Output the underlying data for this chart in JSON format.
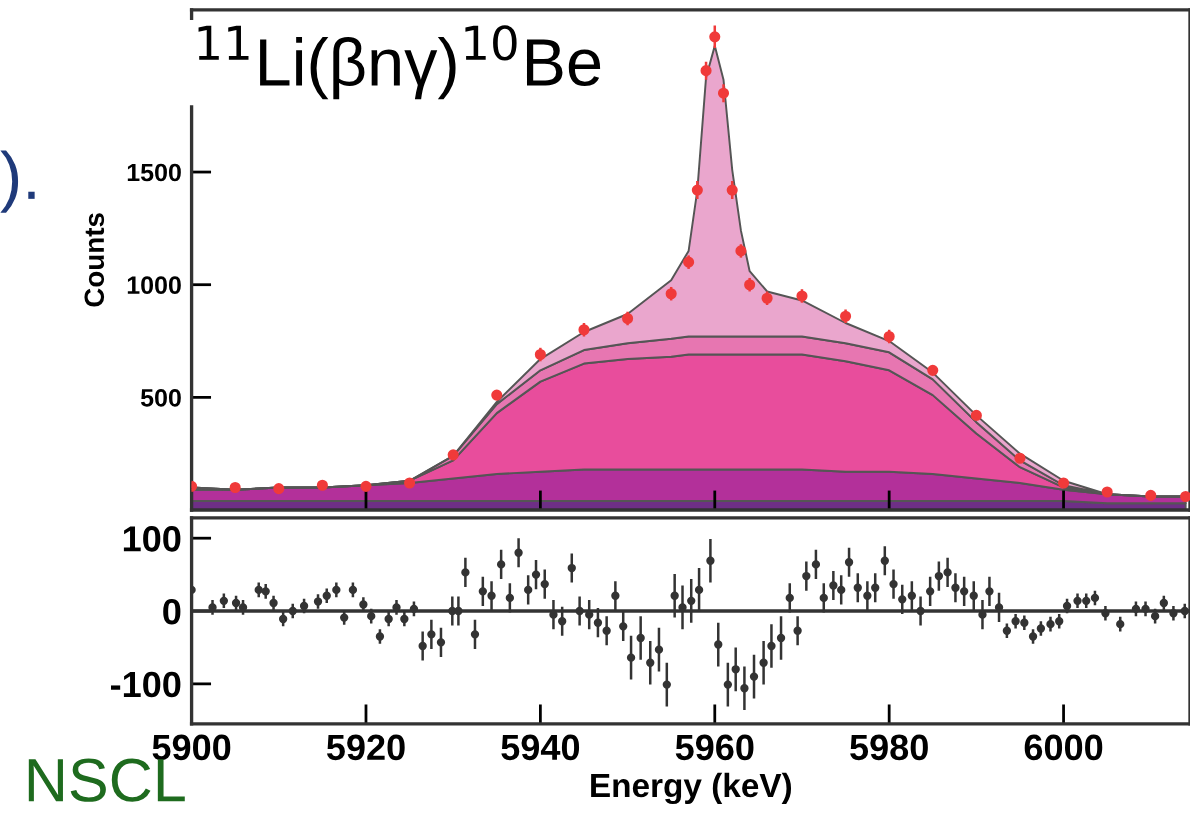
{
  "chart_data": [
    {
      "type": "area",
      "stacked": true,
      "title": "$^{11}$Li(βnγ)$^{10}$Be",
      "ylabel": "Counts",
      "annotations": [
        ").",
        "NSCL"
      ],
      "x": [
        5900,
        5905,
        5910,
        5915,
        5920,
        5925,
        5930,
        5935,
        5940,
        5945,
        5950,
        5955,
        5957,
        5958,
        5959,
        5960,
        5961,
        5962,
        5963,
        5964,
        5966,
        5970,
        5975,
        5980,
        5985,
        5990,
        5995,
        6000,
        6005,
        6010,
        6014
      ],
      "xlim": [
        5900,
        6014.5
      ],
      "ylim": [
        0,
        2220
      ],
      "yticks": [
        500,
        1000,
        1500
      ],
      "xticks": [
        5900,
        5920,
        5940,
        5960,
        5980,
        6000
      ],
      "tick_labels": "y",
      "grid": false,
      "series": [
        {
          "color": "#6e2f86",
          "values": [
            40,
            40,
            40,
            40,
            40,
            40,
            40,
            40,
            40,
            40,
            40,
            40,
            40,
            40,
            40,
            40,
            40,
            40,
            40,
            40,
            40,
            40,
            40,
            40,
            40,
            40,
            40,
            40,
            30,
            30,
            30
          ]
        },
        {
          "color": "#b3309a",
          "values": [
            50,
            50,
            60,
            60,
            70,
            80,
            100,
            120,
            130,
            140,
            140,
            140,
            140,
            140,
            140,
            140,
            140,
            140,
            140,
            140,
            140,
            140,
            130,
            130,
            120,
            100,
            80,
            50,
            40,
            30,
            30
          ]
        },
        {
          "color": "#e84d9c",
          "values": [
            10,
            0,
            0,
            0,
            0,
            10,
            80,
            270,
            400,
            470,
            490,
            500,
            510,
            510,
            510,
            510,
            510,
            510,
            510,
            510,
            510,
            510,
            490,
            450,
            350,
            200,
            70,
            10,
            0,
            0,
            0
          ]
        },
        {
          "color": "#e776b1",
          "values": [
            0,
            0,
            0,
            0,
            0,
            0,
            20,
            40,
            50,
            60,
            70,
            80,
            80,
            80,
            80,
            80,
            80,
            80,
            80,
            80,
            80,
            80,
            80,
            80,
            70,
            50,
            30,
            10,
            0,
            0,
            0
          ]
        },
        {
          "color": "#eaa6cd",
          "values": [
            0,
            0,
            0,
            0,
            0,
            0,
            0,
            10,
            50,
            80,
            130,
            260,
            380,
            650,
            1150,
            1290,
            1140,
            740,
            470,
            290,
            200,
            160,
            90,
            50,
            30,
            30,
            30,
            20,
            0,
            0,
            0
          ]
        },
        {
          "type": "scatter",
          "color": "#f03a3a",
          "marker": "circle",
          "x": [
            5900,
            5905,
            5910,
            5915,
            5920,
            5925,
            5930,
            5935,
            5940,
            5945,
            5950,
            5955,
            5957,
            5958,
            5959,
            5960,
            5961,
            5962,
            5963,
            5964,
            5966,
            5970,
            5975,
            5980,
            5985,
            5990,
            5995,
            6000,
            6005,
            6010,
            6014
          ],
          "values": [
            105,
            100,
            95,
            110,
            105,
            120,
            245,
            510,
            690,
            800,
            850,
            960,
            1100,
            1420,
            1950,
            2100,
            1850,
            1420,
            1150,
            1000,
            940,
            950,
            860,
            770,
            620,
            420,
            230,
            120,
            80,
            65,
            60
          ],
          "errors": [
            10,
            10,
            10,
            10,
            10,
            10,
            20,
            20,
            30,
            30,
            30,
            30,
            30,
            40,
            40,
            50,
            40,
            40,
            30,
            30,
            30,
            30,
            30,
            30,
            20,
            20,
            20,
            10,
            10,
            10,
            10
          ]
        }
      ]
    },
    {
      "type": "scatter",
      "xlabel": "Energy (keV)",
      "xlim": [
        5900,
        6014.5
      ],
      "ylim": [
        -155,
        128
      ],
      "xticks": [
        5900,
        5920,
        5940,
        5960,
        5980,
        6000
      ],
      "yticks": [
        -100,
        0,
        100
      ],
      "grid": false,
      "marker": "circle",
      "ref_lines": [
        {
          "axis": "y",
          "value": 0,
          "color": "#333333",
          "line_style": "solid"
        }
      ],
      "series": [
        {
          "color": "#333333",
          "x": [
            5900,
            5902.4,
            5903.7,
            5905.1,
            5905.9,
            5907.7,
            5908.5,
            5909.4,
            5910.5,
            5911.6,
            5912.9,
            5914.5,
            5915.5,
            5916.6,
            5917.5,
            5918.5,
            5919.7,
            5920.6,
            5921.6,
            5922.6,
            5923.5,
            5924.4,
            5925.5,
            5926.5,
            5927.5,
            5928.6,
            5929.9,
            5930.6,
            5931.4,
            5932.5,
            5933.4,
            5934.4,
            5935.5,
            5936.5,
            5937.5,
            5938.6,
            5939.5,
            5940.5,
            5941.5,
            5942.5,
            5943.6,
            5944.5,
            5945.6,
            5946.6,
            5947.6,
            5948.6,
            5949.5,
            5950.4,
            5951.5,
            5952.6,
            5953.6,
            5954.5,
            5955.4,
            5956.3,
            5957.3,
            5958.2,
            5959.5,
            5960.4,
            5961.5,
            5962.4,
            5963.4,
            5964.5,
            5965.6,
            5966.5,
            5967.6,
            5968.6,
            5969.5,
            5970.5,
            5971.6,
            5972.5,
            5973.6,
            5974.5,
            5975.4,
            5976.4,
            5977.5,
            5978.4,
            5979.5,
            5980.5,
            5981.5,
            5982.6,
            5983.6,
            5984.7,
            5985.7,
            5986.7,
            5987.6,
            5988.6,
            5989.7,
            5990.7,
            5991.5,
            5992.6,
            5993.5,
            5994.5,
            5995.5,
            5996.5,
            5997.4,
            5998.5,
            5999.5,
            6000.4,
            6001.6,
            6002.6,
            6003.6,
            6004.8,
            6006.5,
            6008.3,
            6009.4,
            6010.5,
            6011.5,
            6012.6,
            6013.9
          ],
          "values": [
            29,
            5,
            14,
            11,
            5,
            29,
            27,
            11,
            -11,
            0,
            7,
            13,
            21,
            29,
            -9,
            29,
            9,
            -7,
            -35,
            -11,
            5,
            -11,
            3,
            -48,
            -32,
            -43,
            0,
            0,
            53,
            -32,
            27,
            21,
            64,
            18,
            80,
            29,
            50,
            37,
            -5,
            -14,
            59,
            0,
            -5,
            -16,
            -27,
            21,
            -21,
            -64,
            -37,
            -71,
            -53,
            -101,
            21,
            5,
            14,
            29,
            69,
            -46,
            -101,
            -80,
            -106,
            -90,
            -71,
            -48,
            -37,
            18,
            -27,
            48,
            64,
            18,
            35,
            29,
            67,
            32,
            21,
            32,
            69,
            37,
            16,
            21,
            0,
            27,
            48,
            53,
            32,
            27,
            21,
            -5,
            27,
            5,
            -27,
            -14,
            -16,
            -35,
            -24,
            -18,
            -14,
            7,
            14,
            14,
            18,
            -3,
            -18,
            3,
            3,
            -7,
            11,
            -3,
            0
          ],
          "errors": [
            10,
            10,
            10,
            10,
            10,
            10,
            10,
            10,
            10,
            10,
            10,
            10,
            10,
            10,
            10,
            10,
            10,
            10,
            10,
            10,
            10,
            10,
            10,
            20,
            20,
            20,
            20,
            20,
            20,
            20,
            20,
            20,
            20,
            20,
            20,
            20,
            20,
            20,
            20,
            20,
            20,
            20,
            20,
            20,
            20,
            20,
            20,
            30,
            30,
            30,
            30,
            30,
            30,
            30,
            30,
            30,
            30,
            30,
            30,
            30,
            30,
            30,
            30,
            30,
            30,
            20,
            20,
            20,
            20,
            20,
            20,
            20,
            20,
            20,
            20,
            20,
            20,
            20,
            20,
            20,
            20,
            20,
            20,
            20,
            20,
            20,
            20,
            20,
            20,
            20,
            10,
            10,
            10,
            10,
            10,
            10,
            10,
            10,
            10,
            10,
            10,
            10,
            10,
            10,
            10,
            10,
            10,
            10,
            10
          ]
        }
      ]
    }
  ]
}
